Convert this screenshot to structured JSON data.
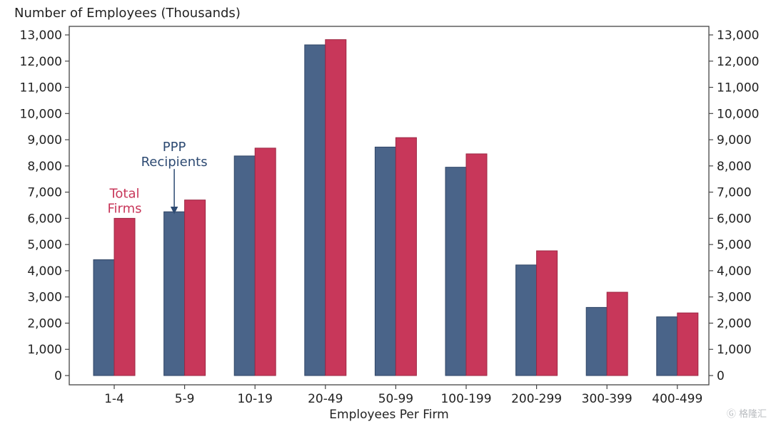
{
  "chart_data": {
    "type": "bar",
    "title": "Number of Employees (Thousands)",
    "xlabel": "Employees Per Firm",
    "ylabel": "",
    "ylim": [
      0,
      13000
    ],
    "yticks": [
      0,
      1000,
      2000,
      3000,
      4000,
      5000,
      6000,
      7000,
      8000,
      9000,
      10000,
      11000,
      12000,
      13000
    ],
    "ytick_labels": [
      "0",
      "1,000",
      "2,000",
      "3,000",
      "4,000",
      "5,000",
      "6,000",
      "7,000",
      "8,000",
      "9,000",
      "10,000",
      "11,000",
      "12,000",
      "13,000"
    ],
    "categories": [
      "1-4",
      "5-9",
      "10-19",
      "20-49",
      "50-99",
      "100-199",
      "200-299",
      "300-399",
      "400-499"
    ],
    "series": [
      {
        "name": "PPP Recipients",
        "color": "#4a6489",
        "values": [
          4420,
          6250,
          8380,
          12620,
          8720,
          7950,
          4220,
          2600,
          2240
        ]
      },
      {
        "name": "Total Firms",
        "color": "#c8375a",
        "values": [
          6000,
          6700,
          8680,
          12820,
          9080,
          8460,
          4760,
          3180,
          2390
        ]
      }
    ],
    "annotations": [
      {
        "text_lines": [
          "PPP",
          "Recipients"
        ],
        "series": "PPP Recipients",
        "category": "5-9",
        "arrow": true
      },
      {
        "text_lines": [
          "Total",
          "Firms"
        ],
        "series": "Total Firms",
        "category": "1-4",
        "arrow": false
      }
    ],
    "grid": false,
    "legend": "none"
  },
  "watermark": "格隆汇"
}
